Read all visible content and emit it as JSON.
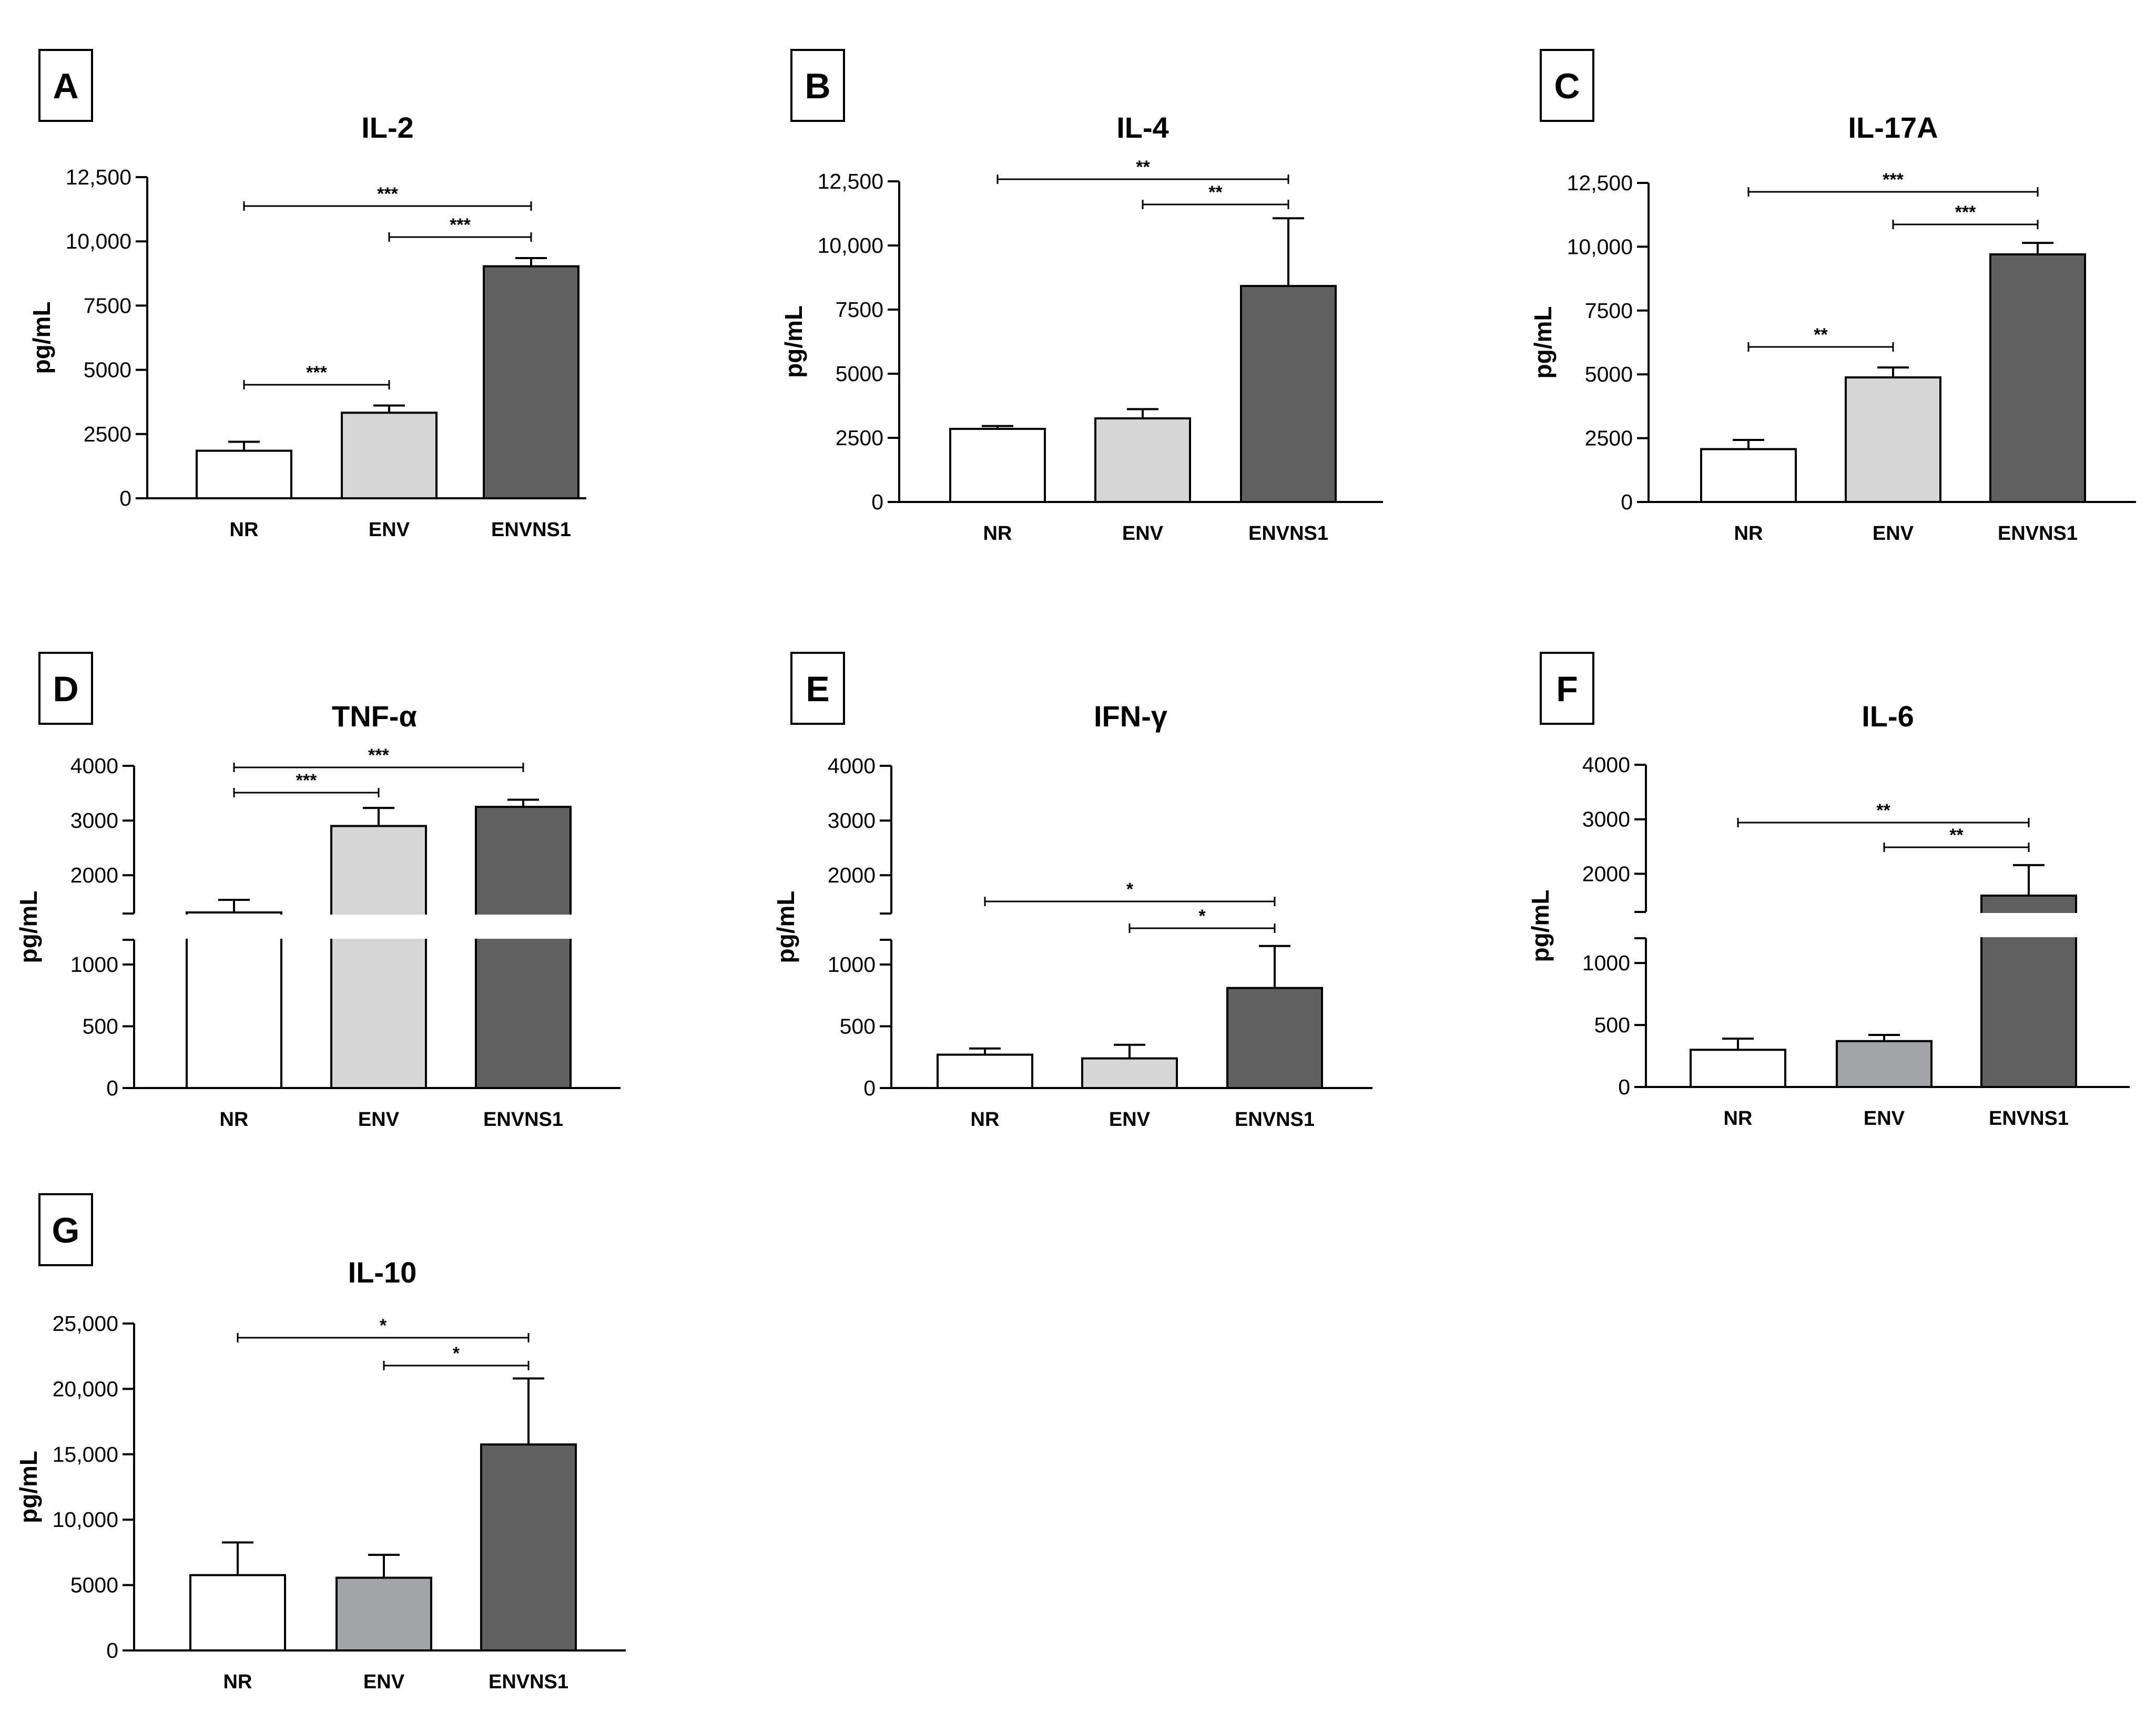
{
  "chart_data": [
    {
      "panel": "A",
      "type": "bar",
      "title": "IL-2",
      "ylabel": "pg/mL",
      "categories": [
        "NR",
        "ENV",
        "ENVNS1"
      ],
      "values": [
        1850,
        3330,
        9030
      ],
      "errors": [
        350,
        280,
        320
      ],
      "colors": [
        "#ffffff",
        "#d6d6d6",
        "#606060"
      ],
      "ylim": [
        0,
        12500
      ],
      "yticks": [
        "0",
        "2500",
        "5000",
        "7500",
        "10,000",
        "12,500"
      ],
      "significance": [
        {
          "from": 0,
          "to": 1,
          "label": "***"
        },
        {
          "from": 1,
          "to": 2,
          "label": "***"
        },
        {
          "from": 0,
          "to": 2,
          "label": "***"
        }
      ]
    },
    {
      "panel": "B",
      "type": "bar",
      "title": "IL-4",
      "ylabel": "pg/mL",
      "categories": [
        "NR",
        "ENV",
        "ENVNS1"
      ],
      "values": [
        2850,
        3260,
        8420
      ],
      "errors": [
        110,
        360,
        2640
      ],
      "colors": [
        "#ffffff",
        "#d6d6d6",
        "#606060"
      ],
      "ylim": [
        0,
        12500
      ],
      "yticks": [
        "0",
        "2500",
        "5000",
        "7500",
        "10,000",
        "12,500"
      ],
      "significance": [
        {
          "from": 1,
          "to": 2,
          "label": "**"
        },
        {
          "from": 0,
          "to": 2,
          "label": "**"
        }
      ]
    },
    {
      "panel": "C",
      "type": "bar",
      "title": "IL-17A",
      "ylabel": "pg/mL",
      "categories": [
        "NR",
        "ENV",
        "ENVNS1"
      ],
      "values": [
        2070,
        4880,
        9700
      ],
      "errors": [
        360,
        390,
        450
      ],
      "colors": [
        "#ffffff",
        "#d6d6d6",
        "#606060"
      ],
      "ylim": [
        0,
        12500
      ],
      "yticks": [
        "0",
        "2500",
        "5000",
        "7500",
        "10,000",
        "12,500"
      ],
      "significance": [
        {
          "from": 0,
          "to": 1,
          "label": "**"
        },
        {
          "from": 1,
          "to": 2,
          "label": "***"
        },
        {
          "from": 0,
          "to": 2,
          "label": "***"
        }
      ]
    },
    {
      "panel": "D",
      "type": "bar",
      "title": "TNF-α",
      "ylabel": "pg/mL",
      "categories": [
        "NR",
        "ENV",
        "ENVNS1"
      ],
      "values": [
        1320,
        2900,
        3250
      ],
      "errors": [
        230,
        330,
        130
      ],
      "colors": [
        "#ffffff",
        "#d6d6d6",
        "#606060"
      ],
      "broken_axis": true,
      "lower_range": [
        0,
        1200
      ],
      "upper_range": [
        1300,
        4000
      ],
      "yticks_lower": [
        "0",
        "500",
        "1000"
      ],
      "yticks_upper": [
        "2000",
        "3000",
        "4000"
      ],
      "significance": [
        {
          "from": 0,
          "to": 1,
          "label": "***"
        },
        {
          "from": 0,
          "to": 2,
          "label": "***"
        }
      ]
    },
    {
      "panel": "E",
      "type": "bar",
      "title": "IFN-γ",
      "ylabel": "pg/mL",
      "categories": [
        "NR",
        "ENV",
        "ENVNS1"
      ],
      "values": [
        270,
        240,
        810
      ],
      "errors": [
        50,
        110,
        340
      ],
      "colors": [
        "#ffffff",
        "#d6d6d6",
        "#606060"
      ],
      "broken_axis": true,
      "lower_range": [
        0,
        1200
      ],
      "upper_range": [
        1300,
        4000
      ],
      "yticks_lower": [
        "0",
        "500",
        "1000"
      ],
      "yticks_upper": [
        "2000",
        "3000",
        "4000"
      ],
      "significance": [
        {
          "from": 1,
          "to": 2,
          "label": "*"
        },
        {
          "from": 0,
          "to": 2,
          "label": "*"
        }
      ]
    },
    {
      "panel": "F",
      "type": "bar",
      "title": "IL-6",
      "ylabel": "pg/mL",
      "categories": [
        "NR",
        "ENV",
        "ENVNS1"
      ],
      "values": [
        300,
        370,
        1600
      ],
      "errors": [
        90,
        50,
        560
      ],
      "colors": [
        "#ffffff",
        "#a3a4a7",
        "#606060"
      ],
      "broken_axis": true,
      "lower_range": [
        0,
        1200
      ],
      "upper_range": [
        1300,
        4000
      ],
      "yticks_lower": [
        "0",
        "500",
        "1000"
      ],
      "yticks_upper": [
        "2000",
        "3000",
        "4000"
      ],
      "significance": [
        {
          "from": 1,
          "to": 2,
          "label": "**"
        },
        {
          "from": 0,
          "to": 2,
          "label": "**"
        }
      ]
    },
    {
      "panel": "G",
      "type": "bar",
      "title": "IL-10",
      "ylabel": "pg/mL",
      "categories": [
        "NR",
        "ENV",
        "ENVNS1"
      ],
      "values": [
        5760,
        5560,
        15750
      ],
      "errors": [
        2500,
        1750,
        5050
      ],
      "colors": [
        "#ffffff",
        "#a3a4a7",
        "#606060"
      ],
      "ylim": [
        0,
        25000
      ],
      "yticks": [
        "0",
        "5000",
        "10,000",
        "15,000",
        "20,000",
        "25,000"
      ],
      "significance": [
        {
          "from": 1,
          "to": 2,
          "label": "*"
        },
        {
          "from": 0,
          "to": 2,
          "label": "*"
        }
      ]
    }
  ]
}
